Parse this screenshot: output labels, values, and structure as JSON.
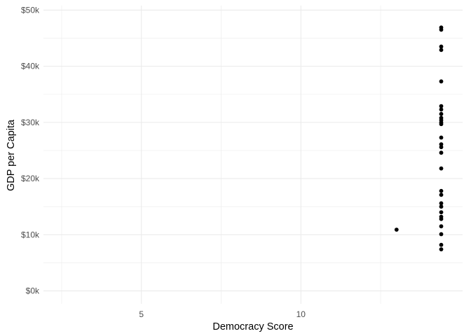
{
  "chart_data": {
    "type": "scatter",
    "title": "",
    "xlabel": "Democracy Score",
    "ylabel": "GDP per Capita",
    "xlim": [
      1.93,
      15.07
    ],
    "ylim": [
      -2300,
      50800
    ],
    "x_ticks": [
      5,
      10
    ],
    "x_tick_labels": [
      "5",
      "10"
    ],
    "y_ticks": [
      0,
      10000,
      20000,
      30000,
      40000,
      50000
    ],
    "y_tick_labels": [
      "$0k",
      "$10k",
      "$20k",
      "$30k",
      "$40k",
      "$50k"
    ],
    "grid": true,
    "legend": "none",
    "point_color": "#000000",
    "points": [
      {
        "x": 13,
        "y": 10900
      },
      {
        "x": 14.4,
        "y": 46900
      },
      {
        "x": 14.4,
        "y": 46500
      },
      {
        "x": 14.4,
        "y": 43500
      },
      {
        "x": 14.4,
        "y": 42900
      },
      {
        "x": 14.4,
        "y": 37300
      },
      {
        "x": 14.4,
        "y": 32900
      },
      {
        "x": 14.4,
        "y": 32300
      },
      {
        "x": 14.4,
        "y": 31500
      },
      {
        "x": 14.4,
        "y": 30800
      },
      {
        "x": 14.4,
        "y": 30400
      },
      {
        "x": 14.4,
        "y": 30000
      },
      {
        "x": 14.4,
        "y": 29700
      },
      {
        "x": 14.4,
        "y": 27300
      },
      {
        "x": 14.4,
        "y": 26100
      },
      {
        "x": 14.4,
        "y": 25600
      },
      {
        "x": 14.4,
        "y": 24600
      },
      {
        "x": 14.4,
        "y": 21800
      },
      {
        "x": 14.4,
        "y": 17800
      },
      {
        "x": 14.4,
        "y": 17100
      },
      {
        "x": 14.4,
        "y": 15600
      },
      {
        "x": 14.4,
        "y": 15000
      },
      {
        "x": 14.4,
        "y": 14000
      },
      {
        "x": 14.4,
        "y": 13200
      },
      {
        "x": 14.4,
        "y": 12800
      },
      {
        "x": 14.4,
        "y": 11500
      },
      {
        "x": 14.4,
        "y": 10100
      },
      {
        "x": 14.4,
        "y": 8200
      },
      {
        "x": 14.4,
        "y": 7400
      }
    ]
  }
}
